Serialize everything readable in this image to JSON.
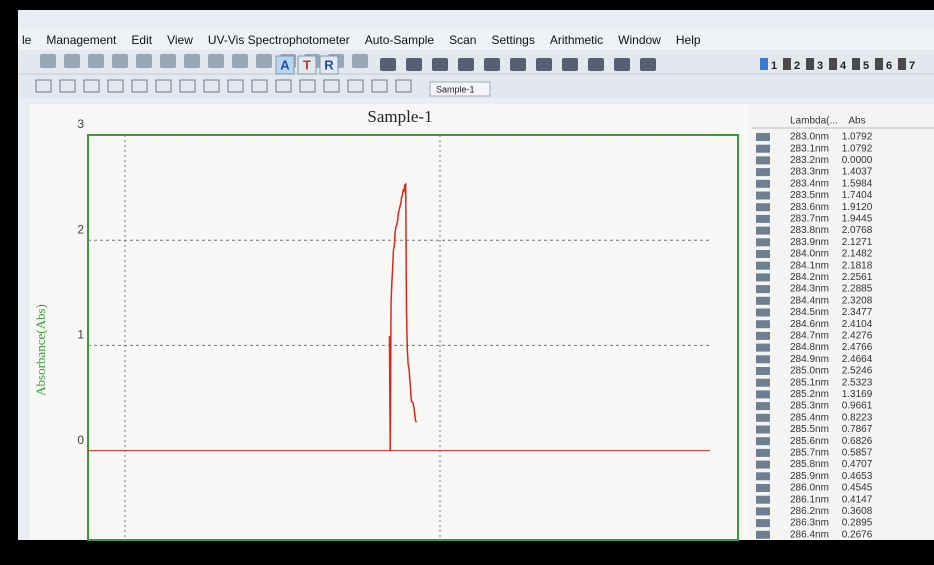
{
  "menu": [
    "le",
    "Management",
    "Edit",
    "View",
    "UV-Vis Spectrophotometer",
    "Auto-Sample",
    "Scan",
    "Settings",
    "Arithmetic",
    "Window",
    "Help"
  ],
  "toolbar": {
    "modes": [
      "A",
      "T",
      "R"
    ],
    "tab": "Sample-1",
    "channels": [
      "1",
      "2",
      "3",
      "4",
      "5",
      "6",
      "7"
    ]
  },
  "chart_data": {
    "type": "line",
    "title": "Sample-1",
    "y_label": "Absorbance(Abs)",
    "x": [
      283.0,
      283.1,
      283.2,
      283.3,
      283.4,
      283.5,
      283.6,
      283.7,
      283.8,
      283.9,
      284.0,
      284.1,
      284.2,
      284.3,
      284.4,
      284.5,
      284.6,
      284.7,
      284.8,
      284.9,
      285.0,
      285.1,
      285.2,
      285.3,
      285.4,
      285.5,
      285.6,
      285.7,
      285.8,
      285.9,
      286.0,
      286.1,
      286.2,
      286.3,
      286.4
    ],
    "series": [
      {
        "name": "Sample-1",
        "color": "#d42a1e",
        "values": [
          1.0792,
          1.0792,
          0.0,
          1.4037,
          1.5984,
          1.7404,
          1.912,
          1.9445,
          2.0768,
          2.1271,
          2.1482,
          2.1818,
          2.2561,
          2.2885,
          2.3208,
          2.3477,
          2.4104,
          2.4276,
          2.4766,
          2.4664,
          2.5246,
          2.5323,
          1.3169,
          0.9661,
          0.8223,
          0.7867,
          0.6826,
          0.5857,
          0.4707,
          0.4653,
          0.4545,
          0.4147,
          0.3608,
          0.2895,
          0.2676
        ]
      }
    ],
    "xlim": [
      246,
      326
    ],
    "ylim": [
      -0.85,
      3
    ],
    "yticks": [
      0,
      1,
      2,
      3
    ],
    "grid": true
  },
  "table": {
    "headers": [
      "Lambda(...",
      "Abs"
    ],
    "rows": [
      [
        "283.0nm",
        "1.0792"
      ],
      [
        "283.1nm",
        "1.0792"
      ],
      [
        "283.2nm",
        "0.0000"
      ],
      [
        "283.3nm",
        "1.4037"
      ],
      [
        "283.4nm",
        "1.5984"
      ],
      [
        "283.5nm",
        "1.7404"
      ],
      [
        "283.6nm",
        "1.9120"
      ],
      [
        "283.7nm",
        "1.9445"
      ],
      [
        "283.8nm",
        "2.0768"
      ],
      [
        "283.9nm",
        "2.1271"
      ],
      [
        "284.0nm",
        "2.1482"
      ],
      [
        "284.1nm",
        "2.1818"
      ],
      [
        "284.2nm",
        "2.2561"
      ],
      [
        "284.3nm",
        "2.2885"
      ],
      [
        "284.4nm",
        "2.3208"
      ],
      [
        "284.5nm",
        "2.3477"
      ],
      [
        "284.6nm",
        "2.4104"
      ],
      [
        "284.7nm",
        "2.4276"
      ],
      [
        "284.8nm",
        "2.4766"
      ],
      [
        "284.9nm",
        "2.4664"
      ],
      [
        "285.0nm",
        "2.5246"
      ],
      [
        "285.1nm",
        "2.5323"
      ],
      [
        "285.2nm",
        "1.3169"
      ],
      [
        "285.3nm",
        "0.9661"
      ],
      [
        "285.4nm",
        "0.8223"
      ],
      [
        "285.5nm",
        "0.7867"
      ],
      [
        "285.6nm",
        "0.6826"
      ],
      [
        "285.7nm",
        "0.5857"
      ],
      [
        "285.8nm",
        "0.4707"
      ],
      [
        "285.9nm",
        "0.4653"
      ],
      [
        "286.0nm",
        "0.4545"
      ],
      [
        "286.1nm",
        "0.4147"
      ],
      [
        "286.2nm",
        "0.3608"
      ],
      [
        "286.3nm",
        "0.2895"
      ],
      [
        "286.4nm",
        "0.2676"
      ]
    ]
  }
}
